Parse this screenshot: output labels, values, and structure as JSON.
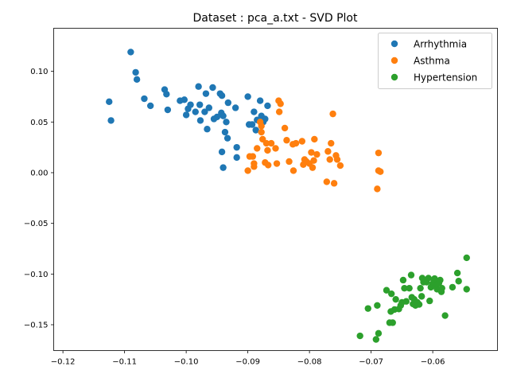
{
  "chart_data": {
    "type": "scatter",
    "title": "Dataset : pca_a.txt - SVD Plot",
    "xlabel": "",
    "ylabel": "",
    "xlim": [
      -0.1215,
      -0.0495
    ],
    "ylim": [
      -0.1755,
      0.1425
    ],
    "xticks": [
      -0.12,
      -0.11,
      -0.1,
      -0.09,
      -0.08,
      -0.07,
      -0.06
    ],
    "xtick_labels": [
      "−0.12",
      "−0.11",
      "−0.10",
      "−0.09",
      "−0.08",
      "−0.07",
      "−0.06"
    ],
    "yticks": [
      -0.15,
      -0.1,
      -0.05,
      0.0,
      0.05,
      0.1
    ],
    "ytick_labels": [
      "−0.15",
      "−0.10",
      "−0.05",
      "0.00",
      "0.05",
      "0.10"
    ],
    "grid": false,
    "legend_position": "top-right",
    "series": [
      {
        "name": "Arrhythmia",
        "color": "#1f77b4",
        "points": [
          [
            -0.109,
            0.119
          ],
          [
            -0.1082,
            0.099
          ],
          [
            -0.108,
            0.092
          ],
          [
            -0.1125,
            0.07
          ],
          [
            -0.1122,
            0.0515
          ],
          [
            -0.1068,
            0.073
          ],
          [
            -0.1058,
            0.066
          ],
          [
            -0.1035,
            0.082
          ],
          [
            -0.1032,
            0.0775
          ],
          [
            -0.103,
            0.062
          ],
          [
            -0.101,
            0.071
          ],
          [
            -0.1003,
            0.072
          ],
          [
            -0.1,
            0.057
          ],
          [
            -0.0997,
            0.063
          ],
          [
            -0.0993,
            0.067
          ],
          [
            -0.0985,
            0.06
          ],
          [
            -0.098,
            0.085
          ],
          [
            -0.0978,
            0.067
          ],
          [
            -0.0977,
            0.0515
          ],
          [
            -0.097,
            0.06
          ],
          [
            -0.0968,
            0.078
          ],
          [
            -0.0966,
            0.043
          ],
          [
            -0.0963,
            0.064
          ],
          [
            -0.0957,
            0.084
          ],
          [
            -0.0955,
            0.053
          ],
          [
            -0.095,
            0.055
          ],
          [
            -0.0945,
            0.078
          ],
          [
            -0.0943,
            0.059
          ],
          [
            -0.0942,
            0.076
          ],
          [
            -0.094,
            0.056
          ],
          [
            -0.0937,
            0.04
          ],
          [
            -0.0935,
            0.05
          ],
          [
            -0.0933,
            0.034
          ],
          [
            -0.0932,
            0.069
          ],
          [
            -0.0942,
            0.0205
          ],
          [
            -0.094,
            0.005
          ],
          [
            -0.092,
            0.064
          ],
          [
            -0.0918,
            0.025
          ],
          [
            -0.0918,
            0.015
          ],
          [
            -0.09,
            0.075
          ],
          [
            -0.0898,
            0.0475
          ],
          [
            -0.0893,
            0.0475
          ],
          [
            -0.089,
            0.06
          ],
          [
            -0.0887,
            0.042
          ],
          [
            -0.0885,
            0.052
          ],
          [
            -0.088,
            0.071
          ],
          [
            -0.0878,
            0.056
          ],
          [
            -0.0875,
            0.05
          ],
          [
            -0.0872,
            0.053
          ],
          [
            -0.0868,
            0.066
          ]
        ]
      },
      {
        "name": "Asthma",
        "color": "#ff7f0e",
        "points": [
          [
            -0.09,
            0.002
          ],
          [
            -0.0897,
            0.016
          ],
          [
            -0.0892,
            0.016
          ],
          [
            -0.089,
            0.009
          ],
          [
            -0.089,
            0.006
          ],
          [
            -0.0885,
            0.024
          ],
          [
            -0.088,
            0.05
          ],
          [
            -0.0878,
            0.046
          ],
          [
            -0.0878,
            0.04
          ],
          [
            -0.0876,
            0.033
          ],
          [
            -0.0872,
            0.01
          ],
          [
            -0.087,
            0.029
          ],
          [
            -0.0868,
            0.022
          ],
          [
            -0.0867,
            0.0075
          ],
          [
            -0.0862,
            0.029
          ],
          [
            -0.0855,
            0.024
          ],
          [
            -0.0853,
            0.009
          ],
          [
            -0.085,
            0.071
          ],
          [
            -0.0849,
            0.06
          ],
          [
            -0.0847,
            0.068
          ],
          [
            -0.084,
            0.044
          ],
          [
            -0.0837,
            0.032
          ],
          [
            -0.0833,
            0.011
          ],
          [
            -0.0827,
            0.028
          ],
          [
            -0.0826,
            0.002
          ],
          [
            -0.0822,
            0.029
          ],
          [
            -0.0812,
            0.031
          ],
          [
            -0.081,
            0.008
          ],
          [
            -0.0808,
            0.013
          ],
          [
            -0.0805,
            0.011
          ],
          [
            -0.08,
            0.009
          ],
          [
            -0.0797,
            0.02
          ],
          [
            -0.0795,
            0.005
          ],
          [
            -0.0793,
            0.012
          ],
          [
            -0.0792,
            0.033
          ],
          [
            -0.0788,
            0.018
          ],
          [
            -0.0772,
            -0.009
          ],
          [
            -0.077,
            0.021
          ],
          [
            -0.0767,
            0.013
          ],
          [
            -0.0765,
            0.029
          ],
          [
            -0.0762,
            0.058
          ],
          [
            -0.076,
            -0.0105
          ],
          [
            -0.0757,
            0.017
          ],
          [
            -0.0755,
            0.013
          ],
          [
            -0.075,
            0.007
          ],
          [
            -0.069,
            -0.016
          ],
          [
            -0.0688,
            0.002
          ],
          [
            -0.0688,
            0.0195
          ],
          [
            -0.0685,
            0.001
          ]
        ]
      },
      {
        "name": "Hypertension",
        "color": "#2ca02c",
        "points": [
          [
            -0.0718,
            -0.161
          ],
          [
            -0.0705,
            -0.134
          ],
          [
            -0.0692,
            -0.1645
          ],
          [
            -0.069,
            -0.131
          ],
          [
            -0.0688,
            -0.1585
          ],
          [
            -0.0675,
            -0.116
          ],
          [
            -0.067,
            -0.148
          ],
          [
            -0.0668,
            -0.137
          ],
          [
            -0.0667,
            -0.1195
          ],
          [
            -0.0665,
            -0.148
          ],
          [
            -0.0662,
            -0.135
          ],
          [
            -0.066,
            -0.125
          ],
          [
            -0.0655,
            -0.1345
          ],
          [
            -0.0652,
            -0.131
          ],
          [
            -0.065,
            -0.128
          ],
          [
            -0.0648,
            -0.106
          ],
          [
            -0.0646,
            -0.114
          ],
          [
            -0.0643,
            -0.127
          ],
          [
            -0.0638,
            -0.114
          ],
          [
            -0.0635,
            -0.101
          ],
          [
            -0.0634,
            -0.123
          ],
          [
            -0.0632,
            -0.1295
          ],
          [
            -0.063,
            -0.125
          ],
          [
            -0.0628,
            -0.131
          ],
          [
            -0.0625,
            -0.128
          ],
          [
            -0.0622,
            -0.13
          ],
          [
            -0.062,
            -0.114
          ],
          [
            -0.0618,
            -0.122
          ],
          [
            -0.0617,
            -0.104
          ],
          [
            -0.0615,
            -0.108
          ],
          [
            -0.061,
            -0.108
          ],
          [
            -0.0607,
            -0.104
          ],
          [
            -0.0605,
            -0.1265
          ],
          [
            -0.0603,
            -0.113
          ],
          [
            -0.06,
            -0.1095
          ],
          [
            -0.0598,
            -0.1065
          ],
          [
            -0.0597,
            -0.1045
          ],
          [
            -0.0595,
            -0.111
          ],
          [
            -0.0593,
            -0.115
          ],
          [
            -0.059,
            -0.109
          ],
          [
            -0.0588,
            -0.106
          ],
          [
            -0.0586,
            -0.1175
          ],
          [
            -0.0585,
            -0.114
          ],
          [
            -0.058,
            -0.141
          ],
          [
            -0.0568,
            -0.113
          ],
          [
            -0.056,
            -0.099
          ],
          [
            -0.0558,
            -0.107
          ],
          [
            -0.0545,
            -0.115
          ],
          [
            -0.0545,
            -0.084
          ]
        ]
      }
    ]
  }
}
